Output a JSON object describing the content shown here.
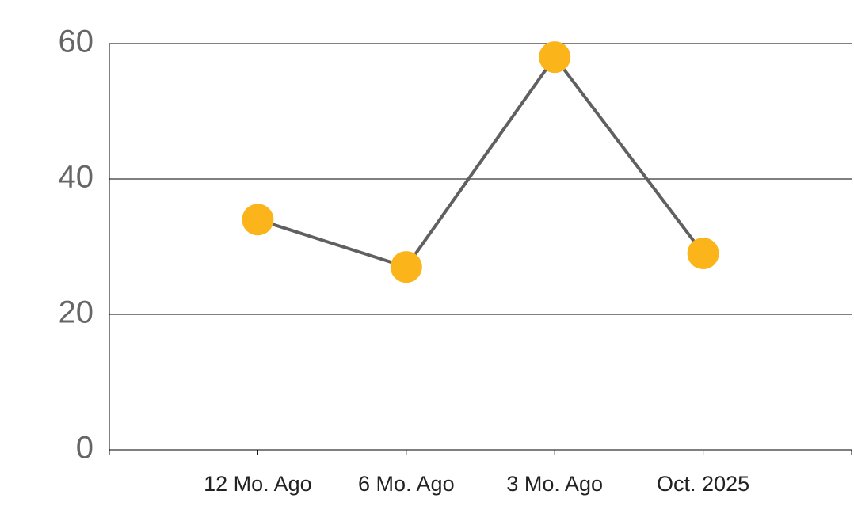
{
  "chart_data": {
    "type": "line",
    "categories": [
      "12 Mo. Ago",
      "6 Mo. Ago",
      "3 Mo. Ago",
      "Oct. 2025"
    ],
    "series": [
      {
        "values": [
          34,
          27,
          58,
          29
        ],
        "color": "#fbb51b",
        "line_color": "#606060"
      }
    ],
    "ylim": [
      0,
      60
    ],
    "yticks": [
      0,
      20,
      40,
      60
    ],
    "grid": true
  }
}
